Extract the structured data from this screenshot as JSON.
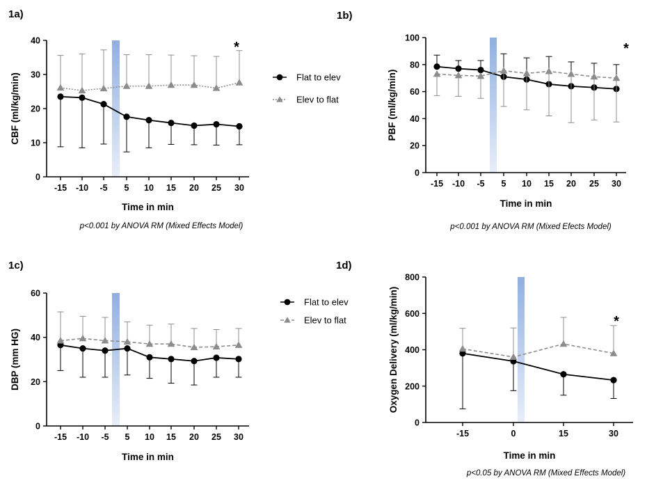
{
  "legend": {
    "flat_label": "Flat to elev",
    "elev_label": "Elev to flat"
  },
  "colors": {
    "flat": "#000000",
    "elev": "#8c8c8c",
    "highlight_top": "#90afe0",
    "highlight_bottom": "#e8eef9"
  },
  "chart_data": [
    {
      "panel_label": "1a)",
      "type": "line",
      "x": [
        "-15",
        "-10",
        "-5",
        "5",
        "10",
        "15",
        "20",
        "25",
        "30"
      ],
      "xlabel": "Time in min",
      "ylabel": "CBF (ml/kg/min)",
      "ylim": [
        0,
        40
      ],
      "yticks": [
        0,
        10,
        20,
        30,
        40
      ],
      "series": [
        {
          "name": "Flat to elev",
          "values": [
            23.5,
            23.2,
            21.3,
            17.6,
            16.6,
            15.8,
            15.0,
            15.4,
            14.8
          ],
          "error_lower": [
            8.8,
            8.5,
            9.6,
            7.3,
            8.5,
            9.5,
            9.4,
            9.3,
            9.4
          ]
        },
        {
          "name": "Elev to flat",
          "values": [
            26.1,
            25.3,
            25.9,
            26.6,
            26.6,
            26.9,
            26.9,
            26.0,
            27.6
          ],
          "error_upper": [
            35.6,
            36.0,
            37.2,
            35.8,
            35.8,
            35.7,
            35.5,
            35.3,
            37.0
          ]
        }
      ],
      "highlight_between": [
        "-5",
        "5"
      ],
      "significance": {
        "x": "30",
        "label": "*"
      },
      "note": "p<0.001 by ANOVA RM (Mixed Effects Model)",
      "legend_position": "right"
    },
    {
      "panel_label": "1b)",
      "type": "line",
      "x": [
        "-15",
        "-10",
        "-5",
        "5",
        "10",
        "15",
        "20",
        "25",
        "30"
      ],
      "xlabel": "Time in min",
      "ylabel": "PBF (ml/kg/min)",
      "ylim": [
        0,
        100
      ],
      "yticks": [
        0,
        20,
        40,
        60,
        80,
        100
      ],
      "series": [
        {
          "name": "Flat to elev",
          "values": [
            78.5,
            77.0,
            76.0,
            71.0,
            69.0,
            65.5,
            64.0,
            63.0,
            62.0
          ],
          "error_upper": [
            87.0,
            83.0,
            83.0,
            88.0,
            85.0,
            86.0,
            82.0,
            81.0,
            80.0
          ]
        },
        {
          "name": "Elev to flat",
          "values": [
            73.0,
            72.0,
            71.5,
            75.5,
            73.5,
            75.0,
            73.0,
            71.0,
            70.0
          ],
          "error_lower": [
            57.0,
            56.5,
            55.0,
            49.0,
            46.5,
            42.0,
            37.0,
            39.0,
            37.5
          ]
        }
      ],
      "highlight_between": [
        "-5",
        "5"
      ],
      "significance": {
        "x": "30",
        "label": "*"
      },
      "note": "p<0.001 by ANOVA RM (Mixed Efects Model)",
      "legend_position": "none"
    },
    {
      "panel_label": "1c)",
      "type": "line",
      "x": [
        "-15",
        "-10",
        "-5",
        "5",
        "10",
        "15",
        "20",
        "25",
        "30"
      ],
      "xlabel": "Time in min",
      "ylabel": "DBP (mm HG)",
      "ylim": [
        0,
        60
      ],
      "yticks": [
        0,
        20,
        40,
        60
      ],
      "series": [
        {
          "name": "Flat to elev",
          "values": [
            36.5,
            35.0,
            34.0,
            35.0,
            31.0,
            30.2,
            29.3,
            30.8,
            30.2
          ],
          "error_lower": [
            25.0,
            22.0,
            22.0,
            23.0,
            21.5,
            19.3,
            18.5,
            22.0,
            22.0
          ]
        },
        {
          "name": "Elev to flat",
          "values": [
            38.5,
            39.5,
            38.5,
            38.0,
            37.0,
            37.0,
            35.5,
            35.8,
            36.5
          ],
          "error_upper": [
            51.5,
            49.5,
            49.0,
            47.0,
            45.5,
            46.0,
            44.0,
            43.5,
            44.0
          ]
        }
      ],
      "highlight_between": [
        "-5",
        "5"
      ],
      "legend_position": "right"
    },
    {
      "panel_label": "1d)",
      "type": "line",
      "x": [
        "-15",
        "0",
        "15",
        "30"
      ],
      "xlabel": "Time in min",
      "ylabel": "Oxygen Delivery (ml/kg/min)",
      "ylim": [
        0,
        800
      ],
      "yticks": [
        0,
        200,
        400,
        600,
        800
      ],
      "series": [
        {
          "name": "Flat to elev",
          "values": [
            380,
            337,
            265,
            233
          ],
          "error_lower": [
            75,
            175,
            150,
            132
          ]
        },
        {
          "name": "Elev to flat",
          "values": [
            405,
            360,
            432,
            380
          ],
          "error_upper": [
            518,
            520,
            578,
            533
          ]
        }
      ],
      "highlight_between": [
        "0",
        "15"
      ],
      "significance": {
        "x": "30",
        "label": "*"
      },
      "note": "p<0.05 by ANOVA RM (Mixed Effects Model)",
      "legend_position": "none"
    }
  ]
}
